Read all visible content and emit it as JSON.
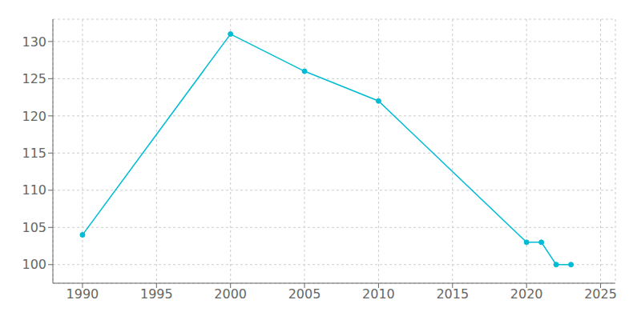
{
  "chart_data": {
    "type": "line",
    "x": [
      1990,
      2000,
      2005,
      2010,
      2020,
      2021,
      2022,
      2023
    ],
    "values": [
      104,
      131,
      126,
      122,
      103,
      103,
      100,
      100
    ],
    "color": "#00BCD4",
    "marker": "circle",
    "xlim": [
      1988,
      2026
    ],
    "xticks": [
      1990,
      1995,
      2000,
      2005,
      2010,
      2015,
      2020,
      2025
    ],
    "ylim": [
      97.5,
      133
    ],
    "yticks": [
      100,
      105,
      110,
      115,
      120,
      125,
      130
    ],
    "grid": true
  }
}
